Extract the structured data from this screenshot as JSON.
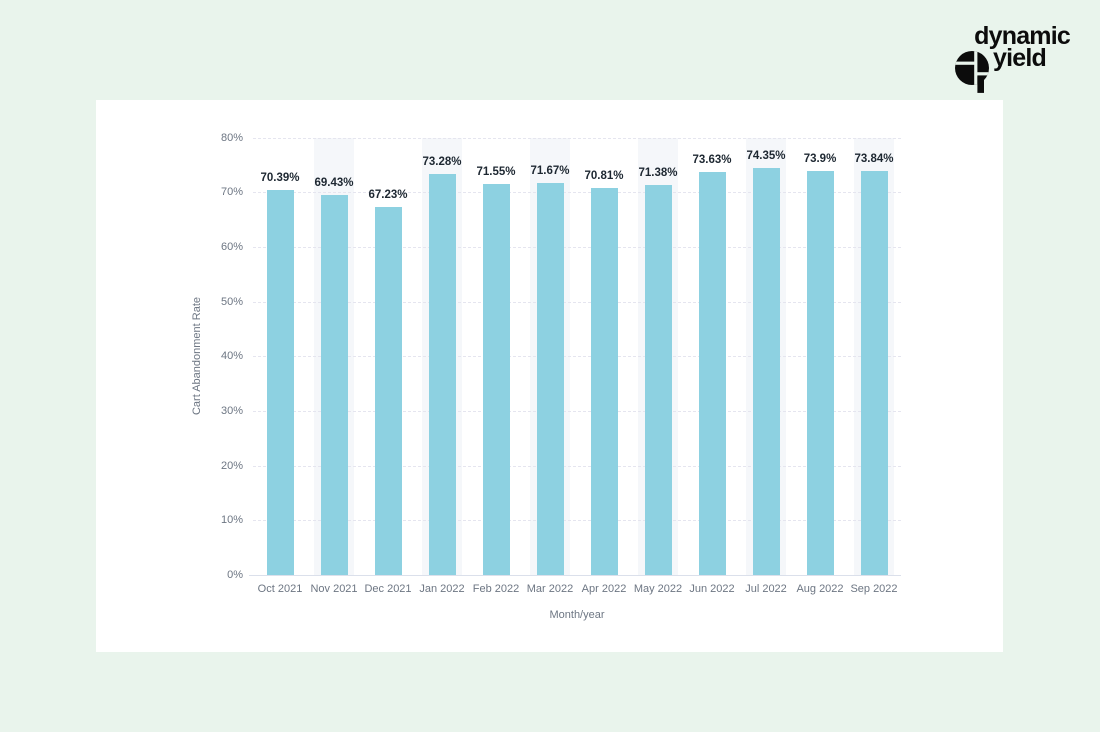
{
  "brand": {
    "line1": "dynamic",
    "line2": "yield",
    "icon": "dynamic-yield-circle-logo",
    "color": "#0c0c0c"
  },
  "page_background": "#e9f4ec",
  "card_background": "#ffffff",
  "chart_data": {
    "type": "bar",
    "title": "",
    "xlabel": "Month/year",
    "ylabel": "Cart Abandonment Rate",
    "categories": [
      "Oct 2021",
      "Nov 2021",
      "Dec 2021",
      "Jan 2022",
      "Feb 2022",
      "Mar 2022",
      "Apr 2022",
      "May 2022",
      "Jun 2022",
      "Jul 2022",
      "Aug 2022",
      "Sep 2022"
    ],
    "values": [
      70.39,
      69.43,
      67.23,
      73.28,
      71.55,
      71.67,
      70.81,
      71.38,
      73.63,
      74.35,
      73.9,
      73.84
    ],
    "value_labels": [
      "70.39%",
      "69.43%",
      "67.23%",
      "73.28%",
      "71.55%",
      "71.67%",
      "70.81%",
      "71.38%",
      "73.63%",
      "74.35%",
      "73.9%",
      "73.84%"
    ],
    "ylim": [
      0,
      80
    ],
    "yticks": {
      "values": [
        0,
        10,
        20,
        30,
        40,
        50,
        60,
        70,
        80
      ],
      "labels": [
        "0%",
        "10%",
        "20%",
        "30%",
        "40%",
        "50%",
        "60%",
        "70%",
        "80%"
      ]
    },
    "grid": "horizontal-dashed",
    "legend": "none",
    "bar_color": "#8dd1e1",
    "band_color": "#f5f7fa",
    "banded_columns": [
      1,
      3,
      5,
      7,
      9,
      11
    ]
  }
}
